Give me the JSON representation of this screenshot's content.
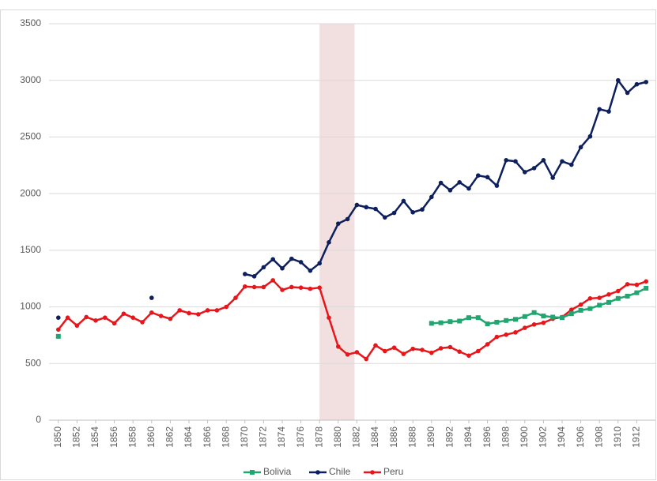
{
  "chart_data": {
    "type": "line",
    "x": [
      1850,
      1851,
      1852,
      1853,
      1854,
      1855,
      1856,
      1857,
      1858,
      1859,
      1860,
      1861,
      1862,
      1863,
      1864,
      1865,
      1866,
      1867,
      1868,
      1869,
      1870,
      1871,
      1872,
      1873,
      1874,
      1875,
      1876,
      1877,
      1878,
      1879,
      1880,
      1881,
      1882,
      1883,
      1884,
      1885,
      1886,
      1887,
      1888,
      1889,
      1890,
      1891,
      1892,
      1893,
      1894,
      1895,
      1896,
      1897,
      1898,
      1899,
      1900,
      1901,
      1902,
      1903,
      1904,
      1905,
      1906,
      1907,
      1908,
      1909,
      1910,
      1911,
      1912,
      1913
    ],
    "series": [
      {
        "name": "Bolivia",
        "color": "#22a671",
        "marker": "square",
        "values": [
          740,
          null,
          null,
          null,
          null,
          null,
          null,
          null,
          null,
          null,
          null,
          null,
          null,
          null,
          null,
          null,
          null,
          null,
          null,
          null,
          null,
          null,
          null,
          null,
          null,
          null,
          null,
          null,
          null,
          null,
          null,
          null,
          null,
          null,
          null,
          null,
          null,
          null,
          null,
          null,
          855,
          860,
          870,
          875,
          905,
          905,
          850,
          865,
          880,
          890,
          915,
          950,
          920,
          910,
          905,
          940,
          970,
          985,
          1015,
          1040,
          1075,
          1095,
          1125,
          1165
        ]
      },
      {
        "name": "Chile",
        "color": "#0d1f5c",
        "marker": "circle",
        "values": [
          905,
          null,
          null,
          null,
          null,
          null,
          null,
          null,
          null,
          null,
          1080,
          null,
          null,
          null,
          null,
          null,
          null,
          null,
          null,
          null,
          1290,
          1270,
          1350,
          1420,
          1340,
          1425,
          1395,
          1320,
          1385,
          1570,
          1735,
          1775,
          1900,
          1880,
          1865,
          1790,
          1830,
          1935,
          1835,
          1860,
          1970,
          2095,
          2030,
          2100,
          2045,
          2160,
          2145,
          2070,
          2295,
          2285,
          2190,
          2225,
          2295,
          2140,
          2285,
          2255,
          2410,
          2505,
          2745,
          2725,
          3000,
          2890,
          2965,
          2985
        ]
      },
      {
        "name": "Peru",
        "color": "#e8161b",
        "marker": "circle",
        "values": [
          800,
          905,
          835,
          910,
          880,
          905,
          855,
          940,
          905,
          865,
          950,
          920,
          895,
          970,
          945,
          935,
          970,
          970,
          1000,
          1080,
          1180,
          1175,
          1175,
          1235,
          1150,
          1175,
          1170,
          1160,
          1170,
          905,
          650,
          580,
          600,
          540,
          660,
          610,
          640,
          585,
          630,
          620,
          595,
          635,
          645,
          605,
          570,
          610,
          670,
          735,
          755,
          775,
          815,
          845,
          860,
          895,
          910,
          975,
          1020,
          1075,
          1080,
          1110,
          1140,
          1200,
          1195,
          1225
        ]
      }
    ],
    "highlight": [
      1878,
      1881.75
    ],
    "highlight_color": "#f2e0e0",
    "xlim": [
      1849,
      1914
    ],
    "xticks": [
      1850,
      1852,
      1854,
      1856,
      1858,
      1860,
      1862,
      1864,
      1866,
      1868,
      1870,
      1872,
      1874,
      1876,
      1878,
      1880,
      1882,
      1884,
      1886,
      1888,
      1890,
      1892,
      1894,
      1896,
      1898,
      1900,
      1902,
      1904,
      1906,
      1908,
      1910,
      1912
    ],
    "ylim": [
      0,
      3500
    ],
    "yticks": [
      0,
      500,
      1000,
      1500,
      2000,
      2500,
      3000,
      3500
    ],
    "grid": true,
    "legend": "bottom"
  }
}
